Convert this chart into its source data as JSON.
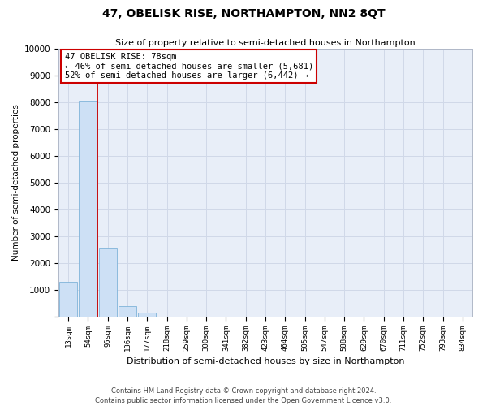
{
  "title": "47, OBELISK RISE, NORTHAMPTON, NN2 8QT",
  "subtitle": "Size of property relative to semi-detached houses in Northampton",
  "xlabel": "Distribution of semi-detached houses by size in Northampton",
  "ylabel": "Number of semi-detached properties",
  "bar_labels": [
    "13sqm",
    "54sqm",
    "95sqm",
    "136sqm",
    "177sqm",
    "218sqm",
    "259sqm",
    "300sqm",
    "341sqm",
    "382sqm",
    "423sqm",
    "464sqm",
    "505sqm",
    "547sqm",
    "588sqm",
    "629sqm",
    "670sqm",
    "711sqm",
    "752sqm",
    "793sqm",
    "834sqm"
  ],
  "bar_values": [
    1300,
    8050,
    2550,
    400,
    150,
    0,
    0,
    0,
    0,
    0,
    0,
    0,
    0,
    0,
    0,
    0,
    0,
    0,
    0,
    0,
    0
  ],
  "bar_color": "#cde0f5",
  "bar_edge_color": "#7fb3d9",
  "ylim": [
    0,
    10000
  ],
  "yticks": [
    0,
    1000,
    2000,
    3000,
    4000,
    5000,
    6000,
    7000,
    8000,
    9000,
    10000
  ],
  "property_line_color": "#cc0000",
  "annotation_title": "47 OBELISK RISE: 78sqm",
  "annotation_line1": "← 46% of semi-detached houses are smaller (5,681)",
  "annotation_line2": "52% of semi-detached houses are larger (6,442) →",
  "annotation_box_color": "#ffffff",
  "annotation_box_edge_color": "#cc0000",
  "grid_color": "#d0d8e8",
  "background_color": "#e8eef8",
  "footer_line1": "Contains HM Land Registry data © Crown copyright and database right 2024.",
  "footer_line2": "Contains public sector information licensed under the Open Government Licence v3.0."
}
